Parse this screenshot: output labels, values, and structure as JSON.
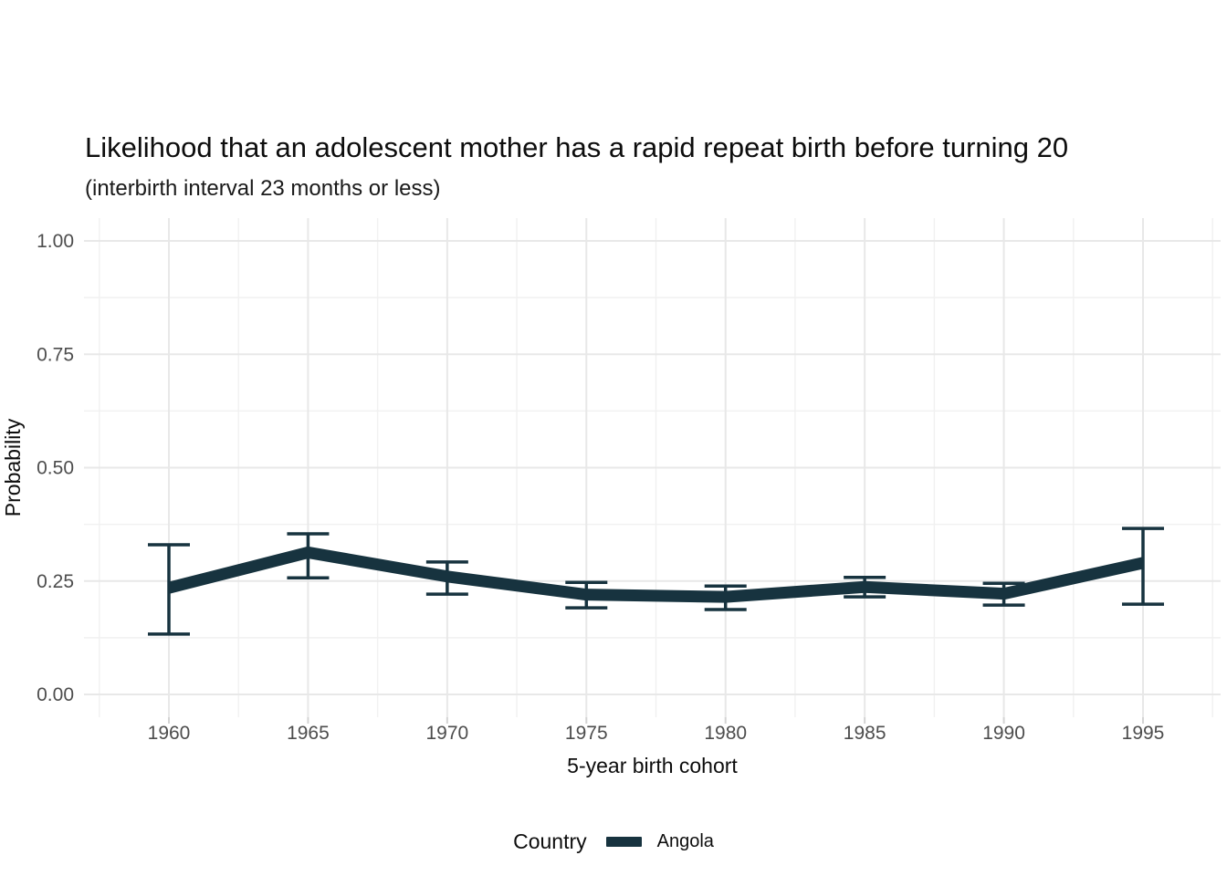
{
  "chart_data": {
    "type": "line",
    "title": "Likelihood that an adolescent mother has a rapid repeat birth before turning 20",
    "subtitle": "(interbirth interval 23 months or less)",
    "xlabel": "5-year birth cohort",
    "ylabel": "Probability",
    "legend_title": "Country",
    "legend_position": "bottom",
    "grid": "major+minor",
    "x": [
      1960,
      1965,
      1970,
      1975,
      1980,
      1985,
      1990,
      1995
    ],
    "x_tick_labels": [
      "1960",
      "1965",
      "1970",
      "1975",
      "1980",
      "1985",
      "1990",
      "1995"
    ],
    "y_ticks": [
      0.0,
      0.25,
      0.5,
      0.75,
      1.0
    ],
    "y_tick_labels": [
      "0.00",
      "0.25",
      "0.50",
      "0.75",
      "1.00"
    ],
    "y_minor_ticks": [
      0.125,
      0.375,
      0.625,
      0.875
    ],
    "x_minor_ticks": [
      1957.5,
      1962.5,
      1967.5,
      1972.5,
      1977.5,
      1982.5,
      1987.5,
      1992.5,
      1997.5
    ],
    "ylim": [
      0.0,
      1.0
    ],
    "xlim": [
      1957,
      1998
    ],
    "series": [
      {
        "name": "Angola",
        "color": "#17333F",
        "values": [
          0.235,
          0.313,
          0.26,
          0.22,
          0.215,
          0.237,
          0.222,
          0.29
        ],
        "ci_low": [
          0.133,
          0.257,
          0.221,
          0.191,
          0.187,
          0.215,
          0.197,
          0.199
        ],
        "ci_high": [
          0.33,
          0.354,
          0.292,
          0.247,
          0.239,
          0.258,
          0.245,
          0.366
        ]
      }
    ]
  },
  "colors": {
    "background": "#FFFFFF",
    "accent": "#17333F",
    "grid_major": "#E8E8E8",
    "grid_minor": "#F1F1F1",
    "axis_tick_mark": "#D4D4D4",
    "tick_label_text": "#4D4D4D",
    "title_text": "#0D0D0D"
  }
}
